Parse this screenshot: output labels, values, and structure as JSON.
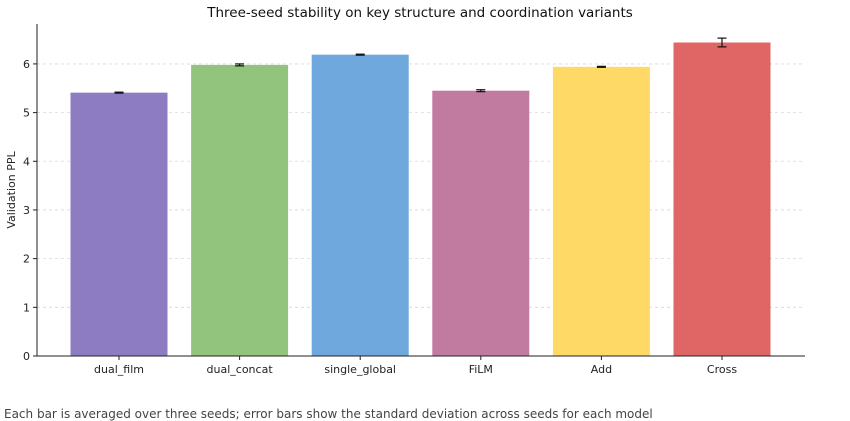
{
  "chart_data": {
    "type": "bar",
    "title": "Three-seed stability on key structure and coordination variants",
    "xlabel": "",
    "ylabel": "Validation PPL",
    "categories": [
      "dual_film",
      "dual_concat",
      "single_global",
      "FiLM",
      "Add",
      "Cross"
    ],
    "values": [
      5.41,
      5.98,
      6.19,
      5.45,
      5.94,
      6.44
    ],
    "errors": [
      0.01,
      0.02,
      0.01,
      0.02,
      0.01,
      0.09
    ],
    "colors": [
      "#8e7cc3",
      "#93c47d",
      "#6fa8dc",
      "#c27ba0",
      "#ffd966",
      "#e06666"
    ],
    "ylim": [
      0,
      6.82
    ],
    "yticks": [
      0,
      1,
      2,
      3,
      4,
      5,
      6
    ],
    "grid": true,
    "legend": "none"
  },
  "caption": "Each bar is averaged over three seeds; error bars show the standard deviation across seeds for each model"
}
